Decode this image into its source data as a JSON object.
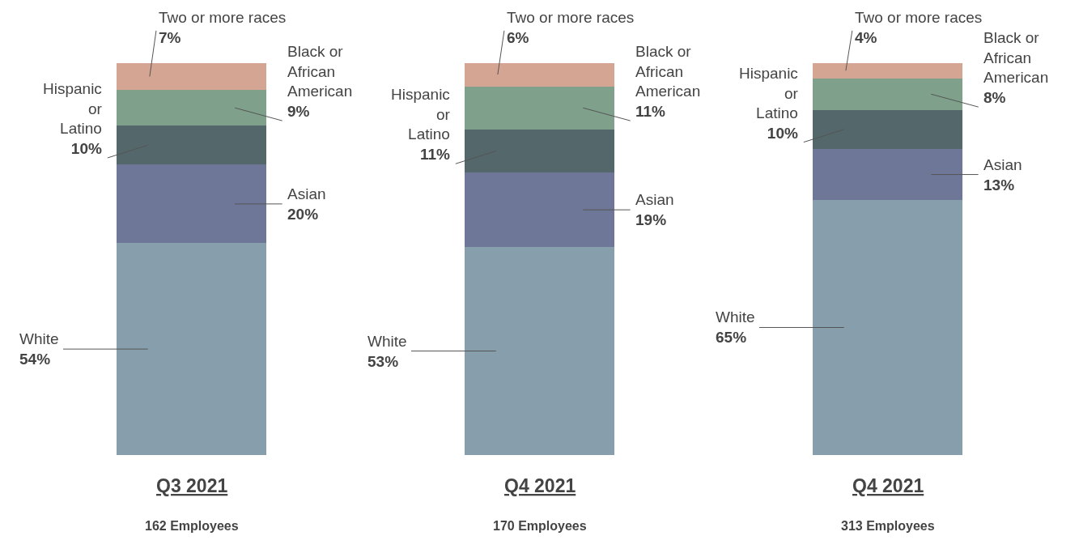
{
  "chart_data": {
    "type": "bar",
    "stacked": true,
    "legend": false,
    "categories": [
      "Q3 2021",
      "Q4 2021",
      "Q4 2021"
    ],
    "series": [
      {
        "name": "White",
        "color": "#879fac",
        "values": [
          54,
          53,
          65
        ],
        "value_labels": [
          "54%",
          "53%",
          "65%"
        ]
      },
      {
        "name": "Asian",
        "color": "#6e7797",
        "values": [
          20,
          19,
          13
        ],
        "value_labels": [
          "20%",
          "19%",
          "13%"
        ]
      },
      {
        "name": "Hispanic or Latino",
        "color": "#54676a",
        "values": [
          10,
          11,
          10
        ],
        "value_labels": [
          "10%",
          "11%",
          "10%"
        ]
      },
      {
        "name": "Black or African American",
        "color": "#7fa18b",
        "values": [
          9,
          11,
          8
        ],
        "value_labels": [
          "9%",
          "11%",
          "8%"
        ]
      },
      {
        "name": "Two or more races",
        "color": "#d5a593",
        "values": [
          7,
          6,
          4
        ],
        "value_labels": [
          "7%",
          "6%",
          "4%"
        ]
      }
    ],
    "annotations": [
      "162 Employees",
      "170 Employees",
      "313 Employees"
    ]
  }
}
